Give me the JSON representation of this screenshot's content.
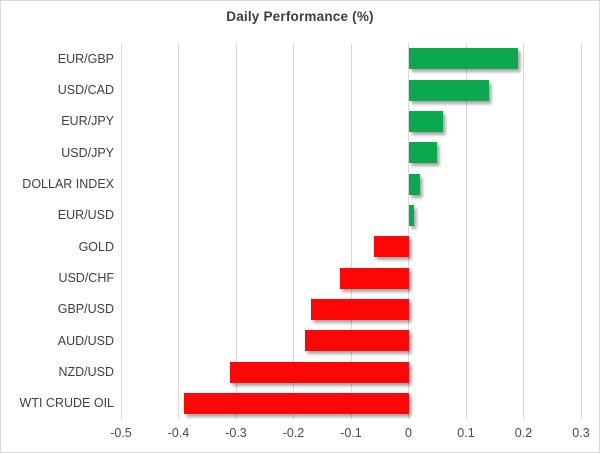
{
  "window": {
    "background": "#ffffff",
    "border_color": "#d9d9d9"
  },
  "chart_data": {
    "type": "bar",
    "orientation": "horizontal",
    "title": "Daily Performance (%)",
    "categories": [
      "EUR/GBP",
      "USD/CAD",
      "EUR/JPY",
      "USD/JPY",
      "DOLLAR INDEX",
      "EUR/USD",
      "GOLD",
      "USD/CHF",
      "GBP/USD",
      "AUD/USD",
      "NZD/USD",
      "WTI CRUDE OIL"
    ],
    "values": [
      0.19,
      0.14,
      0.06,
      0.05,
      0.02,
      0.01,
      -0.06,
      -0.12,
      -0.17,
      -0.18,
      -0.31,
      -0.39
    ],
    "xlabel": "",
    "ylabel": "",
    "xlim": [
      -0.5,
      0.3
    ],
    "x_ticks": [
      -0.5,
      -0.4,
      -0.3,
      -0.2,
      -0.1,
      0,
      0.1,
      0.2,
      0.3
    ],
    "x_tick_labels": [
      "-0.5",
      "-0.4",
      "-0.3",
      "-0.2",
      "-0.1",
      "0",
      "0.1",
      "0.2",
      "0.3"
    ],
    "grid": "vertical-on",
    "legend": "none",
    "colors": {
      "positive_bar": "#0aa84f",
      "negative_bar": "#fe0606",
      "gridline": "#d9d9d9",
      "title_text": "#3d3d3d",
      "label_text": "#404040",
      "tick_text": "#4a4a4a"
    }
  }
}
